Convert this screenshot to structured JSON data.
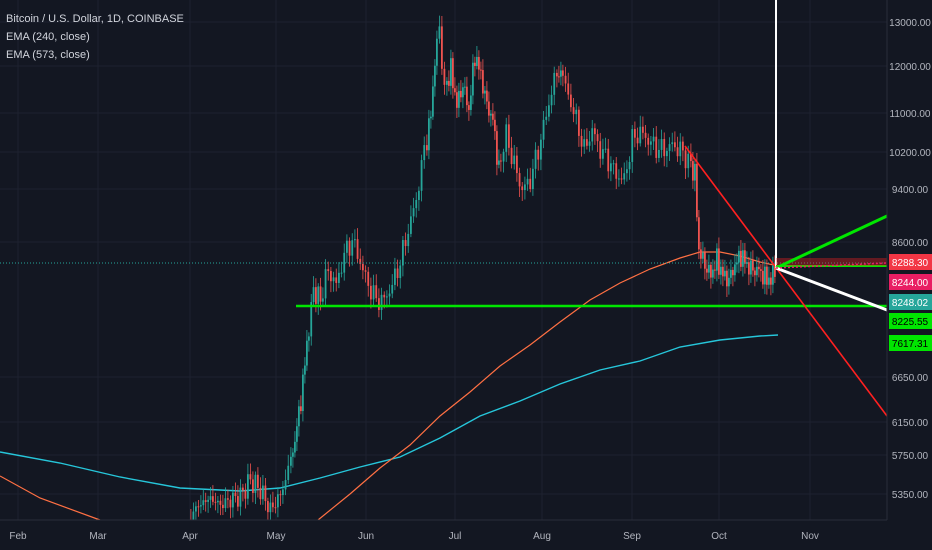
{
  "legend": {
    "symbol": "Bitcoin / U.S. Dollar, 1D, COINBASE",
    "ema1": "EMA (240, close)",
    "ema2": "EMA (573, close)"
  },
  "chart_data": {
    "type": "candlestick",
    "x_ticks": [
      "Feb",
      "Mar",
      "Apr",
      "May",
      "Jun",
      "Jul",
      "Aug",
      "Sep",
      "Oct",
      "Nov"
    ],
    "y_ticks": [
      "13000.00",
      "12000.00",
      "11000.00",
      "10200.00",
      "9400.00",
      "8600.00",
      "6650.00",
      "6150.00",
      "5750.00",
      "5350.00"
    ],
    "y_range": [
      5000,
      13500
    ],
    "price_labels": [
      {
        "text": "8288.30",
        "color": "#f23645",
        "value": 8288.3
      },
      {
        "text": "8244.00",
        "color": "#e91e63",
        "value": 8244.0
      },
      {
        "text": "8248.02",
        "color": "#26a69a",
        "value": 8248.02
      },
      {
        "text": "8225.55",
        "color": "#00e600",
        "value": 8225.55
      },
      {
        "text": "7617.31",
        "color": "#00e600",
        "value": 7617.31
      }
    ],
    "colors": {
      "background": "#131722",
      "up": "#26a69a",
      "down": "#ef5350",
      "ema_240": "#ff7043",
      "ema_573": "#26c6da",
      "support_line": "#00e600",
      "trend_line": "#ff2020",
      "projection_up": "#00e600",
      "projection_down": "#ffffff",
      "vertical_marker": "#ffffff",
      "price_dotted": "#26a69a"
    }
  }
}
